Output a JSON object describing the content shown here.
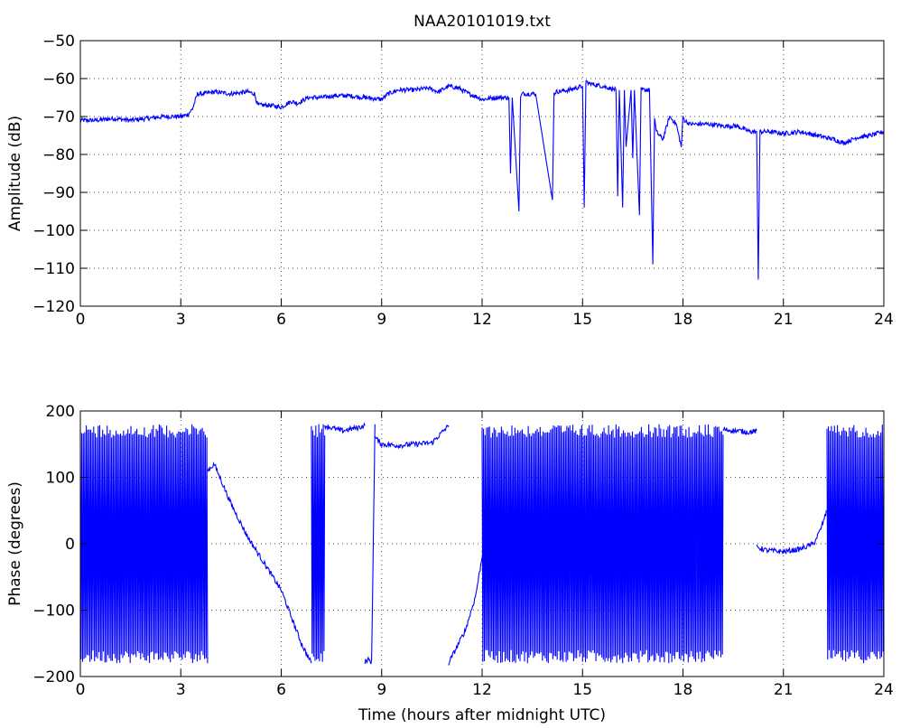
{
  "title": "NAA20101019.txt",
  "colors": {
    "trace": "#0000ff",
    "background": "#ffffff",
    "axes": "#000000"
  },
  "chart_data": [
    {
      "type": "line",
      "title": "NAA20101019.txt",
      "xlabel": "",
      "ylabel": "Amplitude (dB)",
      "xlim": [
        0,
        24
      ],
      "ylim": [
        -120,
        -50
      ],
      "xticks": [
        "0",
        "3",
        "6",
        "9",
        "12",
        "15",
        "18",
        "21",
        "24"
      ],
      "yticks": [
        "−50",
        "−60",
        "−70",
        "−80",
        "−90",
        "−100",
        "−110",
        "−120"
      ],
      "grid": true,
      "series": [
        {
          "x": [
            0,
            0.5,
            1,
            1.5,
            2,
            2.5,
            3,
            3.2,
            3.35,
            3.5,
            3.7,
            4,
            4.5,
            5,
            5.2,
            5.3,
            5.6,
            6,
            6.3,
            6.5,
            6.8,
            7.2,
            7.6,
            8,
            8.5,
            9,
            9.2,
            9.5,
            10,
            10.4,
            10.7,
            11,
            11.3,
            11.6,
            11.9,
            12,
            12.4,
            12.8,
            12.85,
            12.9,
            13.1,
            13.15,
            13.2,
            13.6,
            14.1,
            14.15,
            14.2,
            14.6,
            15.0,
            15.05,
            15.1,
            15.3,
            15.6,
            16.0,
            16.05,
            16.1,
            16.2,
            16.25,
            16.3,
            16.45,
            16.5,
            16.55,
            16.7,
            16.75,
            16.8,
            17.0,
            17.1,
            17.15,
            17.2,
            17.4,
            17.6,
            17.8,
            17.95,
            18.0,
            18.05,
            18.2,
            18.4,
            18.8,
            19.2,
            19.6,
            20.0,
            20.2,
            20.25,
            20.3,
            20.6,
            21.0,
            21.5,
            22.0,
            22.5,
            22.8,
            23.2,
            23.6,
            24
          ],
          "values": [
            -71,
            -71,
            -70.5,
            -71,
            -70.5,
            -70,
            -70,
            -69.5,
            -68,
            -64,
            -64,
            -63.5,
            -64,
            -63.5,
            -64,
            -67,
            -67,
            -67.5,
            -66,
            -66.5,
            -65,
            -65,
            -64.5,
            -64.5,
            -65,
            -65.5,
            -64,
            -63,
            -63,
            -62.5,
            -63.5,
            -62,
            -62.5,
            -64,
            -65,
            -65.5,
            -65,
            -65,
            -85,
            -65,
            -95,
            -65,
            -64,
            -64,
            -92,
            -64,
            -63.5,
            -63,
            -62,
            -94,
            -61,
            -61.5,
            -62,
            -63,
            -91,
            -63,
            -94,
            -63,
            -78,
            -63,
            -81,
            -63,
            -96,
            -63,
            -63,
            -63,
            -109,
            -70,
            -74,
            -76,
            -70,
            -72,
            -78,
            -70,
            -71,
            -72,
            -72,
            -72,
            -72.5,
            -72.5,
            -74,
            -74,
            -113,
            -74,
            -74,
            -74.5,
            -74,
            -75,
            -76,
            -77,
            -75.5,
            -75,
            -74
          ]
        }
      ]
    },
    {
      "type": "line",
      "title": "",
      "xlabel": "Time (hours after midnight UTC)",
      "ylabel": "Phase (degrees)",
      "xlim": [
        0,
        24
      ],
      "ylim": [
        -200,
        200
      ],
      "xticks": [
        "0",
        "3",
        "6",
        "9",
        "12",
        "15",
        "18",
        "21",
        "24"
      ],
      "yticks": [
        "200",
        "100",
        "0",
        "−100",
        "−200"
      ],
      "grid": true,
      "series": [
        {
          "segments": [
            {
              "kind": "wrap",
              "x_start": 0,
              "x_end": 3.8,
              "low": -180,
              "high": 180
            },
            {
              "kind": "trend",
              "x": [
                3.8,
                4.0,
                4.5,
                5.0,
                5.5,
                6.0,
                6.3,
                6.6,
                6.9
              ],
              "values": [
                110,
                120,
                60,
                10,
                -30,
                -70,
                -110,
                -150,
                -180
              ]
            },
            {
              "kind": "wrap",
              "x_start": 6.9,
              "x_end": 7.3,
              "low": -180,
              "high": 180
            },
            {
              "kind": "trend",
              "x": [
                7.3,
                7.8,
                8.3,
                8.5
              ],
              "values": [
                178,
                170,
                175,
                178
              ]
            },
            {
              "kind": "trend",
              "x": [
                8.5,
                8.6,
                8.7,
                8.8
              ],
              "values": [
                -178,
                -175,
                -178,
                180
              ]
            },
            {
              "kind": "trend",
              "x": [
                8.8,
                9.0,
                9.5,
                10.0,
                10.5,
                11.0
              ],
              "values": [
                160,
                150,
                148,
                150,
                152,
                178
              ]
            },
            {
              "kind": "trend",
              "x": [
                11.0,
                11.1,
                11.5,
                11.8,
                12.0
              ],
              "values": [
                -180,
                -170,
                -130,
                -80,
                -20
              ]
            },
            {
              "kind": "wrap",
              "x_start": 12.0,
              "x_end": 18.4,
              "low": -180,
              "high": 180
            },
            {
              "kind": "wrap",
              "x_start": 18.4,
              "x_end": 19.2,
              "low": -180,
              "high": 180
            },
            {
              "kind": "trend",
              "x": [
                19.2,
                19.6,
                20.0,
                20.2
              ],
              "values": [
                172,
                170,
                168,
                170
              ]
            },
            {
              "kind": "trend",
              "x": [
                20.2,
                20.5,
                21.0,
                21.5,
                21.9,
                22.1,
                22.3
              ],
              "values": [
                -5,
                -10,
                -12,
                -8,
                0,
                20,
                50
              ]
            },
            {
              "kind": "wrap",
              "x_start": 22.3,
              "x_end": 24,
              "low": -180,
              "high": 180
            }
          ]
        }
      ]
    }
  ]
}
